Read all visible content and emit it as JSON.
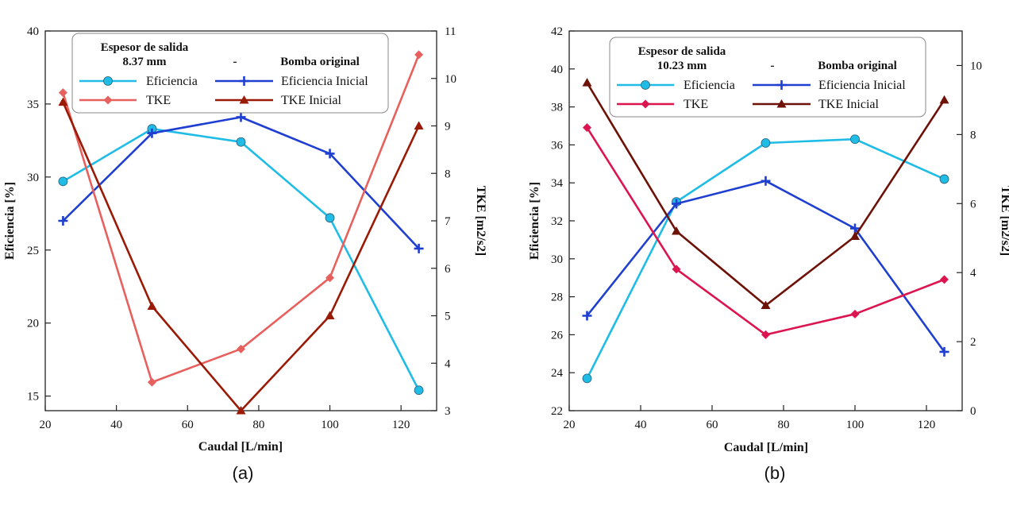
{
  "colors": {
    "eficiencia": "#1fbde6",
    "eficiencia_inicial": "#1f3fd0",
    "tke_a": "#e8605e",
    "tke_b": "#dc1450",
    "tke_inicial_a": "#9a1a06",
    "tke_inicial_b": "#6e1208"
  },
  "chart_data": [
    {
      "type": "line",
      "caption": "(a)",
      "xlabel": "Caudal [L/min]",
      "ylabel": "Eficiencia [%]",
      "y2label": "TKE [m2/s2]",
      "xlim": [
        20,
        130
      ],
      "xticks": [
        20,
        40,
        60,
        80,
        100,
        120
      ],
      "ylim": [
        14,
        40
      ],
      "yticks": [
        15,
        20,
        25,
        30,
        35,
        40
      ],
      "y2lim": [
        3,
        11
      ],
      "y2ticks": [
        3,
        4,
        5,
        6,
        7,
        8,
        9,
        10,
        11
      ],
      "legend": {
        "title_line1": "Espesor de salida",
        "title_line2_left": "8.37 mm",
        "title_dash": "-",
        "title_line2_right": "Bomba original",
        "location": "top-center"
      },
      "series": [
        {
          "name": "Eficiencia",
          "axis": "left",
          "marker": "circle",
          "color_key": "eficiencia",
          "x": [
            25,
            50,
            75,
            100,
            125
          ],
          "values": [
            29.7,
            33.3,
            32.4,
            27.2,
            15.4
          ]
        },
        {
          "name": "Eficiencia Inicial",
          "axis": "left",
          "marker": "plus",
          "color_key": "eficiencia_inicial",
          "x": [
            25,
            50,
            75,
            100,
            125
          ],
          "values": [
            27.0,
            33.0,
            34.1,
            31.6,
            25.1
          ]
        },
        {
          "name": "TKE",
          "axis": "right",
          "marker": "diamond",
          "color_key": "tke_a",
          "x": [
            25,
            50,
            75,
            100,
            125
          ],
          "values": [
            9.7,
            3.6,
            4.3,
            5.8,
            10.5
          ]
        },
        {
          "name": "TKE Inicial",
          "axis": "right",
          "marker": "triangle",
          "color_key": "tke_inicial_a",
          "x": [
            25,
            50,
            75,
            100,
            125
          ],
          "values": [
            9.5,
            5.2,
            3.0,
            5.0,
            9.0
          ]
        }
      ]
    },
    {
      "type": "line",
      "caption": "(b)",
      "xlabel": "Caudal [L/min]",
      "ylabel": "Eficiencia [%]",
      "y2label": "TKE [m2/s2]",
      "xlim": [
        20,
        130
      ],
      "xticks": [
        20,
        40,
        60,
        80,
        100,
        120
      ],
      "ylim": [
        22,
        42
      ],
      "yticks": [
        22,
        24,
        26,
        28,
        30,
        32,
        34,
        36,
        38,
        40,
        42
      ],
      "y2lim": [
        0,
        11
      ],
      "y2ticks": [
        0,
        2,
        4,
        6,
        8,
        10
      ],
      "legend": {
        "title_line1": "Espesor de salida",
        "title_line2_left": "10.23 mm",
        "title_dash": "-",
        "title_line2_right": "Bomba original",
        "location": "top-center"
      },
      "series": [
        {
          "name": "Eficiencia",
          "axis": "left",
          "marker": "circle",
          "color_key": "eficiencia",
          "x": [
            25,
            50,
            75,
            100,
            125
          ],
          "values": [
            23.7,
            33.0,
            36.1,
            36.3,
            34.2
          ]
        },
        {
          "name": "Eficiencia Inicial",
          "axis": "left",
          "marker": "plus",
          "color_key": "eficiencia_inicial",
          "x": [
            25,
            50,
            75,
            100,
            125
          ],
          "values": [
            27.0,
            32.9,
            34.1,
            31.6,
            25.1
          ]
        },
        {
          "name": "TKE",
          "axis": "right",
          "marker": "diamond",
          "color_key": "tke_b",
          "x": [
            25,
            50,
            75,
            100,
            125
          ],
          "values": [
            8.2,
            4.1,
            2.2,
            2.8,
            3.8
          ]
        },
        {
          "name": "TKE Inicial",
          "axis": "right",
          "marker": "triangle",
          "color_key": "tke_inicial_b",
          "x": [
            25,
            50,
            75,
            100,
            125
          ],
          "values": [
            9.5,
            5.2,
            3.05,
            5.05,
            9.0
          ]
        }
      ]
    }
  ]
}
